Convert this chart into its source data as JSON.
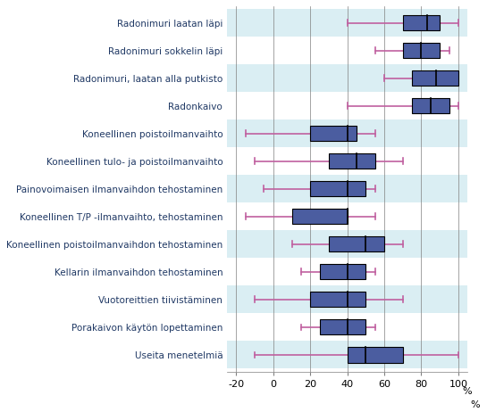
{
  "categories": [
    "Useita menetelmiä",
    "Porakaivon käytön lopettaminen",
    "Vuotoreittien tiivistäminen",
    "Kellarin ilmanvaihdon tehostaminen",
    "Koneellinen poistoilmanvaihdon tehostaminen",
    "Koneellinen T/P -ilmanvaihto, tehostaminen",
    "Painovoimaisen ilmanvaihdon tehostaminen",
    "Koneellinen tulo- ja poistoilmanvaihto",
    "Koneellinen poistoilmanvaihto",
    "Radonkaivo",
    "Radonimuri, laatan alla putkisto",
    "Radonimuri sokkelin läpi",
    "Radonimuri laatan läpi"
  ],
  "whisker_low": [
    -10,
    15,
    -10,
    15,
    10,
    -15,
    -5,
    -10,
    -15,
    40,
    60,
    55,
    40
  ],
  "q1": [
    40,
    25,
    20,
    25,
    30,
    10,
    20,
    30,
    20,
    75,
    75,
    70,
    70
  ],
  "median": [
    50,
    40,
    40,
    40,
    50,
    40,
    40,
    45,
    40,
    85,
    88,
    80,
    83
  ],
  "q3": [
    70,
    50,
    50,
    50,
    60,
    40,
    50,
    55,
    45,
    95,
    100,
    90,
    90
  ],
  "whisker_high": [
    100,
    55,
    70,
    55,
    70,
    55,
    55,
    70,
    55,
    100,
    100,
    95,
    100
  ],
  "box_color": "#4b5da0",
  "whisker_color": "#c060a0",
  "bg_color_light": "#daeef3",
  "bg_color_dark": "#c5e0eb",
  "grid_color": "#808080",
  "text_color": "#1f3864",
  "xlim": [
    -25,
    105
  ],
  "xticks": [
    -20,
    0,
    20,
    40,
    60,
    80,
    100
  ],
  "xlabel_extra": "100 %",
  "figsize": [
    5.45,
    4.62
  ],
  "dpi": 100
}
